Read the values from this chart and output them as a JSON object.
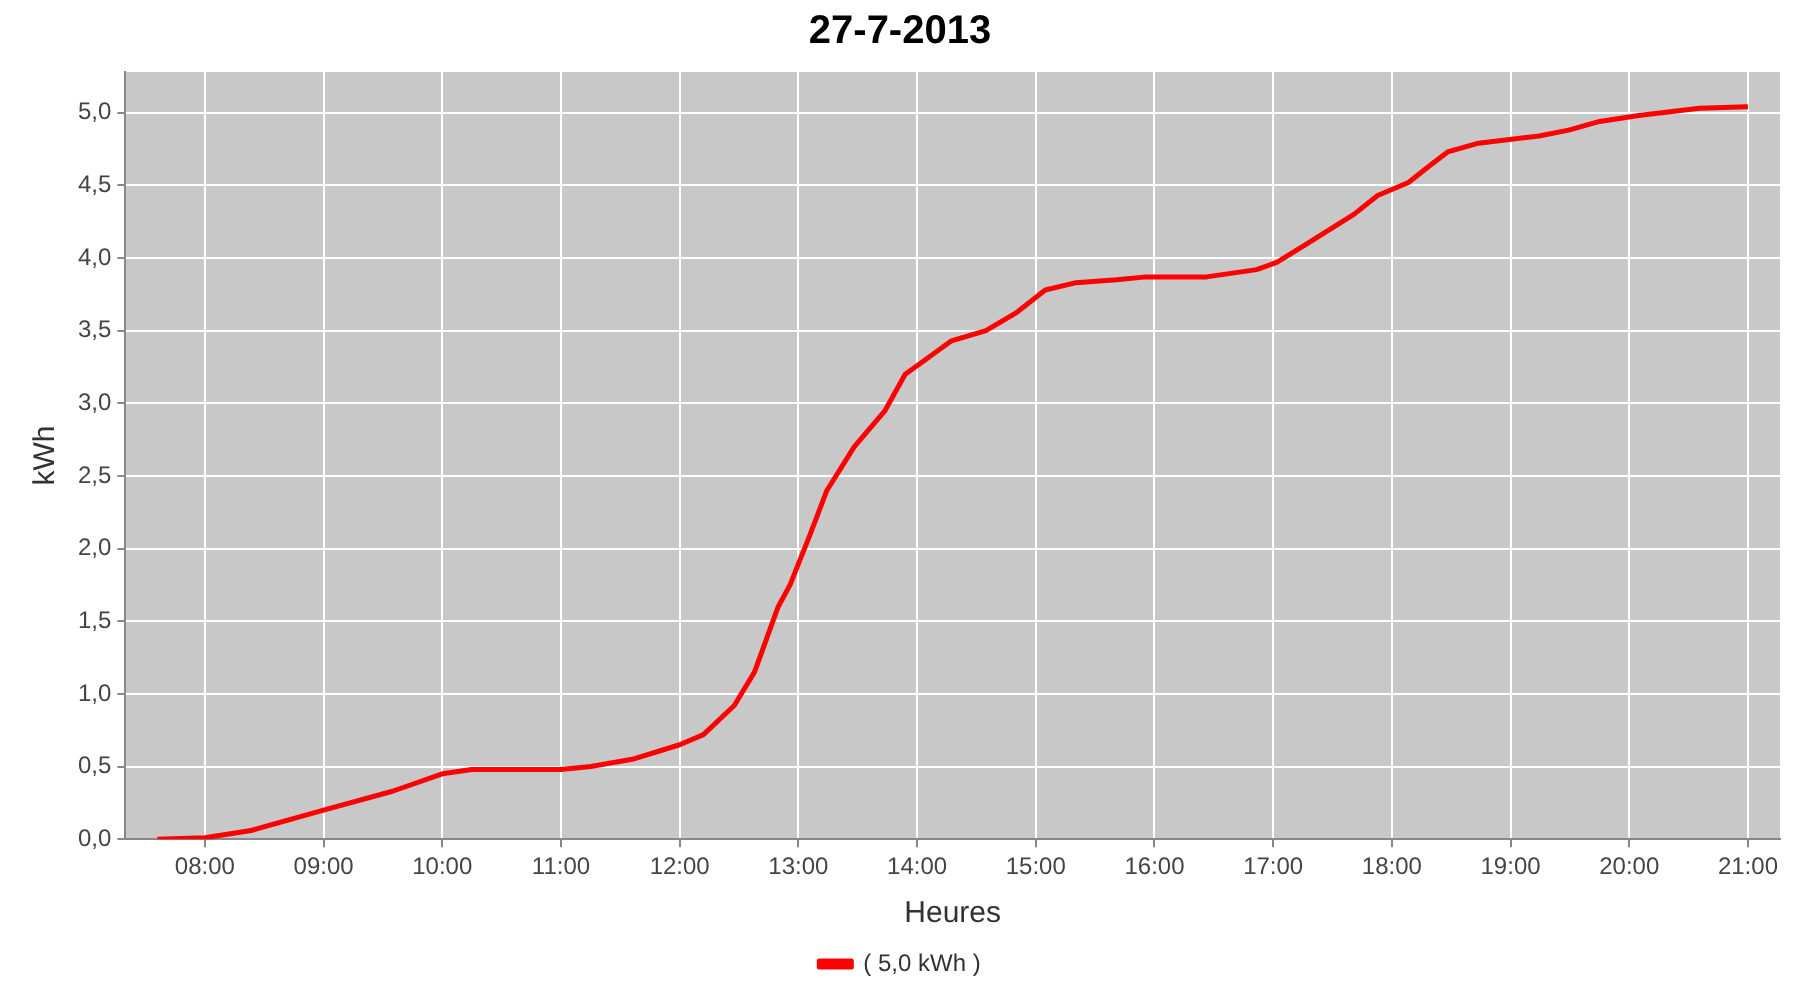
{
  "chart_data": {
    "type": "line",
    "title": "27-7-2013",
    "xlabel": "Heures",
    "ylabel": "kWh",
    "x": [
      7.6,
      8.0,
      8.39,
      9.0,
      9.58,
      10.0,
      10.25,
      11.0,
      11.25,
      11.6,
      12.0,
      12.2,
      12.46,
      12.63,
      12.83,
      12.93,
      13.1,
      13.24,
      13.47,
      13.73,
      13.9,
      14.07,
      14.29,
      14.58,
      14.83,
      15.08,
      15.34,
      15.68,
      15.93,
      16.44,
      16.86,
      17.03,
      17.29,
      17.68,
      17.88,
      18.14,
      18.31,
      18.47,
      18.73,
      19.24,
      19.49,
      19.75,
      20.08,
      20.59,
      21.0
    ],
    "series": [
      {
        "name": "( 5,0 kWh )",
        "color": "#ff0000",
        "values": [
          0,
          0.01,
          0.06,
          0.2,
          0.33,
          0.45,
          0.48,
          0.48,
          0.5,
          0.55,
          0.65,
          0.72,
          0.92,
          1.15,
          1.6,
          1.75,
          2.1,
          2.4,
          2.7,
          2.95,
          3.2,
          3.3,
          3.43,
          3.5,
          3.62,
          3.78,
          3.83,
          3.85,
          3.87,
          3.87,
          3.92,
          3.97,
          4.1,
          4.3,
          4.43,
          4.52,
          4.63,
          4.73,
          4.79,
          4.84,
          4.88,
          4.94,
          4.98,
          5.03,
          5.04
        ]
      }
    ],
    "xlim": [
      7.33,
      21.27
    ],
    "xticks": [
      {
        "value": 8,
        "label": "08:00"
      },
      {
        "value": 9,
        "label": "09:00"
      },
      {
        "value": 10,
        "label": "10:00"
      },
      {
        "value": 11,
        "label": "11:00"
      },
      {
        "value": 12,
        "label": "12:00"
      },
      {
        "value": 13,
        "label": "13:00"
      },
      {
        "value": 14,
        "label": "14:00"
      },
      {
        "value": 15,
        "label": "15:00"
      },
      {
        "value": 16,
        "label": "16:00"
      },
      {
        "value": 17,
        "label": "17:00"
      },
      {
        "value": 18,
        "label": "18:00"
      },
      {
        "value": 19,
        "label": "19:00"
      },
      {
        "value": 20,
        "label": "20:00"
      },
      {
        "value": 21,
        "label": "21:00"
      }
    ],
    "ylim": [
      0,
      5.28
    ],
    "yticks": [
      {
        "value": 0,
        "label": "0,0"
      },
      {
        "value": 0.5,
        "label": "0,5"
      },
      {
        "value": 1,
        "label": "1,0"
      },
      {
        "value": 1.5,
        "label": "1,5"
      },
      {
        "value": 2,
        "label": "2,0"
      },
      {
        "value": 2.5,
        "label": "2,5"
      },
      {
        "value": 3,
        "label": "3,0"
      },
      {
        "value": 3.5,
        "label": "3,5"
      },
      {
        "value": 4,
        "label": "4,0"
      },
      {
        "value": 4.5,
        "label": "4,5"
      },
      {
        "value": 5,
        "label": "5,0"
      }
    ],
    "grid": true,
    "legend": "bottom",
    "line_style": "solid"
  }
}
